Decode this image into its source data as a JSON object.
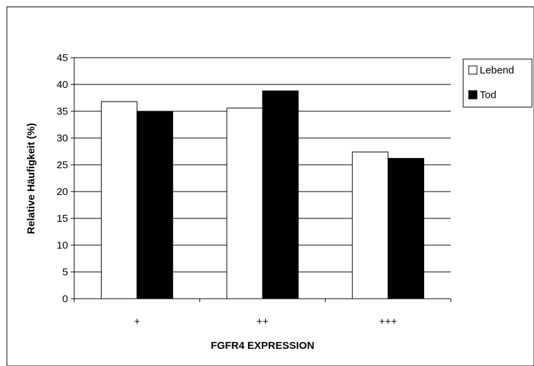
{
  "chart_data": {
    "type": "bar",
    "title": "",
    "xlabel": "FGFR4 EXPRESSION",
    "ylabel": "Relative Häufigkeit (%)",
    "categories": [
      "+",
      "++",
      "+++"
    ],
    "series": [
      {
        "name": "Lebend",
        "values": [
          36.8,
          35.6,
          27.4
        ],
        "color": "#ffffff"
      },
      {
        "name": "Tod",
        "values": [
          34.9,
          38.8,
          26.2
        ],
        "color": "#000000"
      }
    ],
    "ylim": [
      0,
      45
    ],
    "yticks": [
      "0",
      "5",
      "10",
      "15",
      "20",
      "25",
      "30",
      "35",
      "40",
      "45"
    ],
    "grid": true,
    "legend_position": "right"
  }
}
